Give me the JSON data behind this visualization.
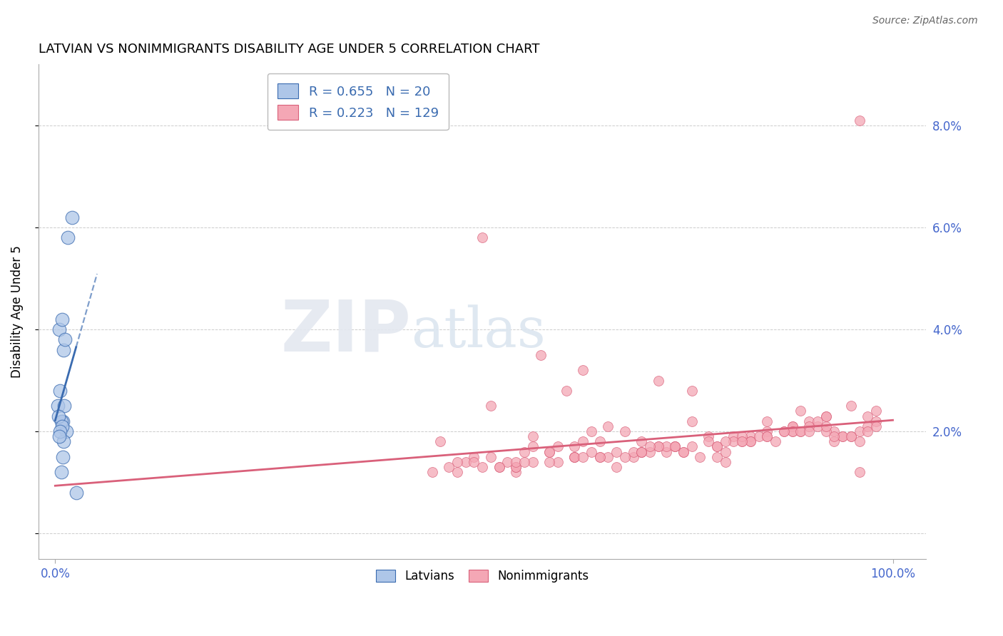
{
  "title": "LATVIAN VS NONIMMIGRANTS DISABILITY AGE UNDER 5 CORRELATION CHART",
  "source": "Source: ZipAtlas.com",
  "ylabel": "Disability Age Under 5",
  "blue_R": 0.655,
  "blue_N": 20,
  "pink_R": 0.223,
  "pink_N": 129,
  "blue_fill": "#aec6e8",
  "blue_edge": "#3a6bb0",
  "pink_fill": "#f4a7b5",
  "pink_edge": "#d9607a",
  "blue_line": "#3a6bb0",
  "pink_line": "#d9607a",
  "latvian_x": [
    1.5,
    2.0,
    0.5,
    0.8,
    1.0,
    1.2,
    0.3,
    0.6,
    0.9,
    1.3,
    0.7,
    1.1,
    0.4,
    0.8,
    1.0,
    0.6,
    0.5,
    0.9,
    0.7,
    2.5
  ],
  "latvian_y": [
    5.8,
    6.2,
    4.0,
    4.2,
    3.6,
    3.8,
    2.5,
    2.8,
    2.2,
    2.0,
    2.2,
    2.5,
    2.3,
    2.1,
    1.8,
    2.0,
    1.9,
    1.5,
    1.2,
    0.8
  ],
  "nonimm_x": [
    96,
    51,
    58,
    63,
    72,
    76,
    46,
    52,
    61,
    69,
    76,
    83,
    88,
    92,
    56,
    64,
    70,
    79,
    85,
    93,
    49,
    57,
    66,
    73,
    82,
    89,
    95,
    53,
    62,
    68,
    77,
    84,
    91,
    97,
    55,
    65,
    71,
    80,
    87,
    94,
    50,
    60,
    67,
    75,
    86,
    90,
    98,
    54,
    59,
    74,
    81,
    88,
    92,
    96,
    45,
    48,
    52,
    57,
    63,
    70,
    78,
    85,
    91,
    97,
    62,
    69,
    76,
    83,
    89,
    95,
    55,
    65,
    72,
    80,
    88,
    93,
    50,
    59,
    66,
    74,
    82,
    90,
    96,
    53,
    62,
    70,
    78,
    85,
    92,
    98,
    48,
    57,
    65,
    73,
    81,
    88,
    94,
    55,
    62,
    70,
    79,
    85,
    92,
    97,
    60,
    68,
    75,
    83,
    89,
    95,
    51,
    59,
    67,
    74,
    82,
    90,
    96,
    55,
    63,
    72,
    80,
    87,
    93,
    98,
    47,
    56,
    64,
    71,
    79
  ],
  "nonimm_y": [
    8.1,
    5.8,
    3.5,
    3.2,
    3.0,
    2.8,
    1.8,
    2.5,
    2.8,
    1.5,
    2.2,
    1.9,
    2.1,
    2.3,
    1.6,
    2.0,
    1.8,
    1.7,
    2.2,
    2.0,
    1.4,
    1.9,
    2.1,
    1.6,
    1.8,
    2.4,
    2.5,
    1.3,
    1.7,
    2.0,
    1.5,
    1.9,
    2.1,
    2.3,
    1.2,
    1.8,
    1.6,
    1.4,
    2.0,
    1.9,
    1.5,
    1.7,
    1.3,
    1.6,
    1.8,
    2.2,
    2.4,
    1.4,
    1.6,
    1.7,
    1.9,
    2.1,
    2.3,
    1.8,
    1.2,
    1.4,
    1.5,
    1.7,
    1.8,
    1.6,
    1.9,
    2.0,
    2.2,
    2.1,
    1.5,
    1.6,
    1.7,
    1.8,
    2.0,
    1.9,
    1.3,
    1.5,
    1.7,
    1.6,
    2.0,
    1.8,
    1.4,
    1.6,
    1.5,
    1.7,
    1.9,
    2.1,
    2.0,
    1.3,
    1.5,
    1.6,
    1.8,
    1.9,
    2.0,
    2.2,
    1.2,
    1.4,
    1.5,
    1.7,
    1.8,
    2.0,
    1.9,
    1.3,
    1.5,
    1.6,
    1.7,
    1.9,
    2.1,
    2.0,
    1.4,
    1.5,
    1.6,
    1.8,
    2.0,
    1.9,
    1.3,
    1.4,
    1.6,
    1.7,
    1.8,
    2.0,
    1.2,
    1.4,
    1.5,
    1.7,
    1.8,
    2.0,
    1.9,
    2.1,
    1.3,
    1.4,
    1.6,
    1.7,
    1.5
  ],
  "ymin": -0.5,
  "ymax": 9.2,
  "xmin": -2,
  "xmax": 104
}
